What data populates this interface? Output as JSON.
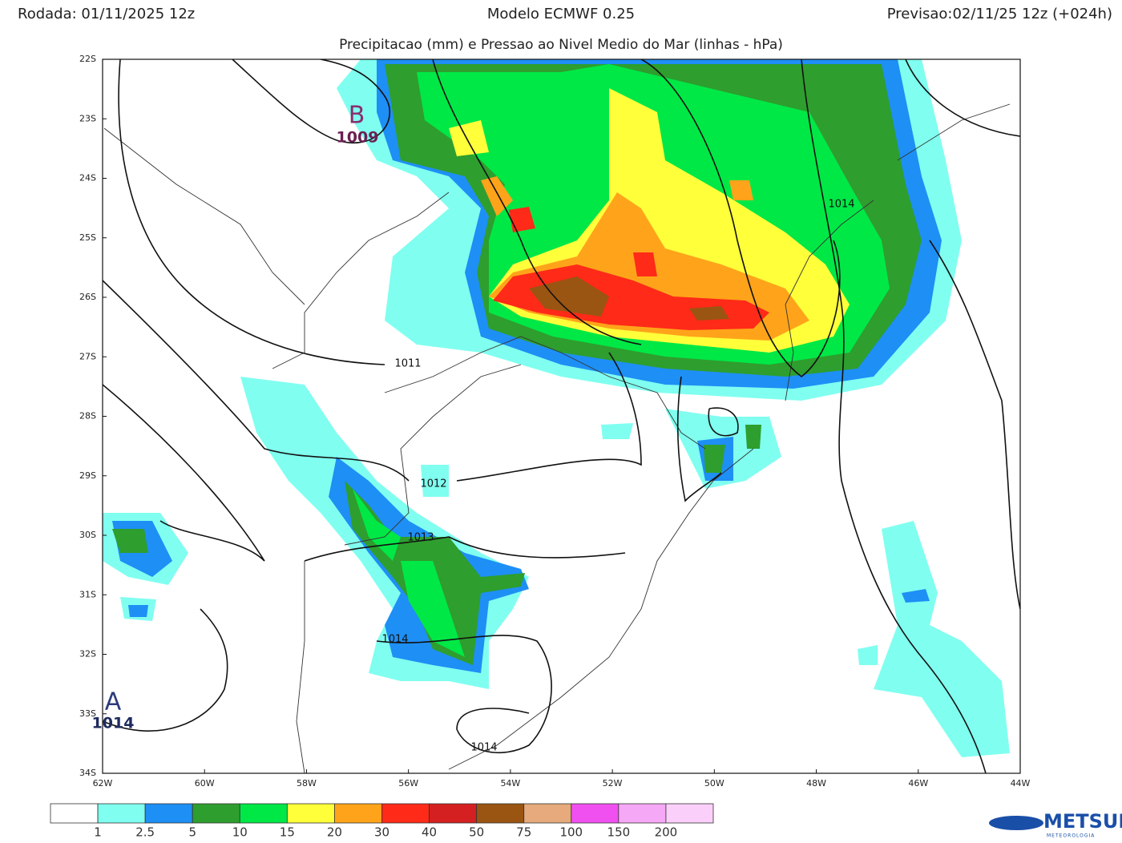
{
  "header": {
    "run": "Rodada: 01/11/2025 12z",
    "model": "Modelo ECMWF 0.25",
    "forecast": "Previsao:02/11/25 12z (+024h)",
    "subtitle": "Precipitacao (mm) e Pressao ao Nivel Medio do Mar (linhas - hPa)"
  },
  "map": {
    "lat_labels": [
      "22S",
      "23S",
      "24S",
      "25S",
      "26S",
      "27S",
      "28S",
      "29S",
      "30S",
      "31S",
      "32S",
      "33S",
      "34S"
    ],
    "lon_labels": [
      "62W",
      "60W",
      "58W",
      "56W",
      "54W",
      "52W",
      "50W",
      "48W",
      "46W",
      "44W"
    ],
    "isobar_labels": [
      "1011",
      "1012",
      "1013",
      "1014",
      "1014",
      "1014"
    ],
    "low_center": {
      "letter": "B",
      "value": "1009"
    },
    "high_center": {
      "letter": "A",
      "value": "1014"
    }
  },
  "colorbar": {
    "colors": [
      "#ffffff",
      "#80fff0",
      "#1e8ff5",
      "#2e9e2e",
      "#00e846",
      "#ffff3a",
      "#ffa41a",
      "#ff2a18",
      "#d42020",
      "#9a5512",
      "#e6aa7c",
      "#f050f0",
      "#f5a8f5",
      "#fad0fa"
    ],
    "labels": [
      "1",
      "2.5",
      "5",
      "10",
      "15",
      "20",
      "30",
      "40",
      "50",
      "75",
      "100",
      "150",
      "200"
    ]
  },
  "logo": {
    "name": "METSUL",
    "sub": "METEOROLOGIA"
  }
}
